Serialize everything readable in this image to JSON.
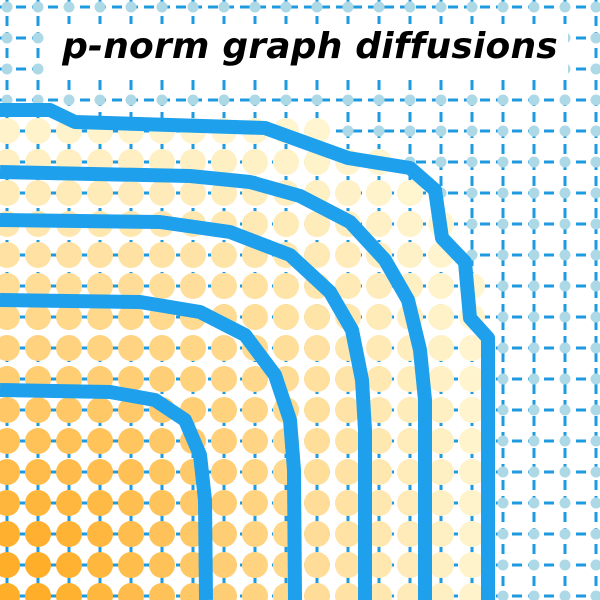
{
  "title": "p-norm graph diffusions",
  "colors": {
    "background": "#ffffff",
    "grid_edge": "#1e9be0",
    "grid_node": "#add8e6",
    "contour": "#1ea0ec",
    "diffusion_low": "#fff6d2",
    "diffusion_high": "#ffae2a"
  }
}
